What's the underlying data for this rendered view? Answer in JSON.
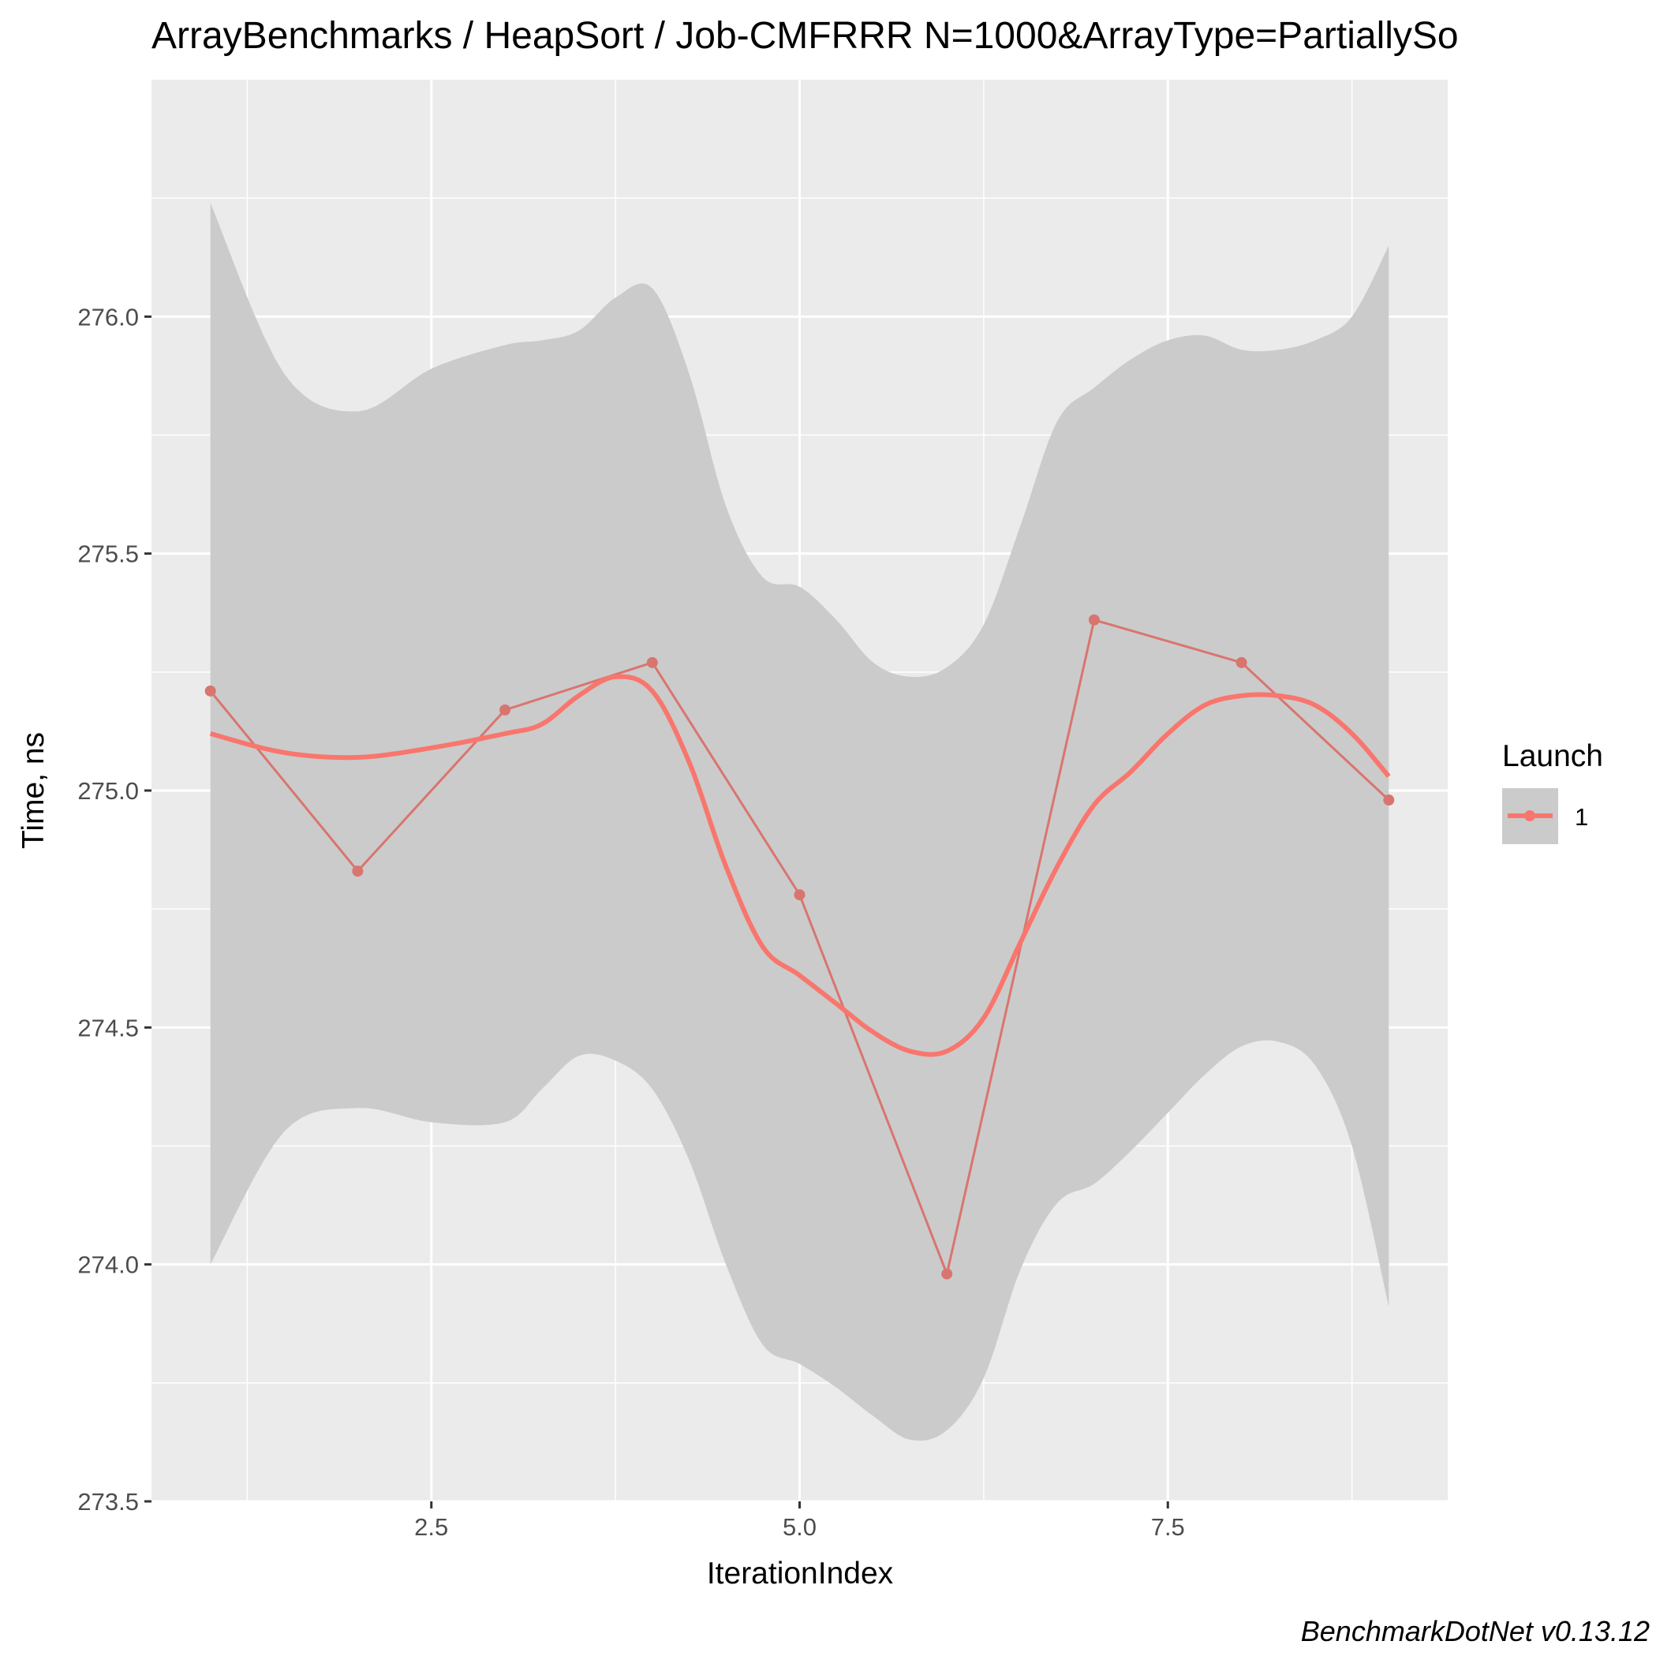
{
  "chart_data": {
    "type": "line",
    "title": "ArrayBenchmarks / HeapSort / Job-CMFRRR N=1000&ArrayType=PartiallySo",
    "xlabel": "IterationIndex",
    "ylabel": "Time, ns",
    "caption": "BenchmarkDotNet v0.13.12",
    "xlim": [
      0.6,
      9.4
    ],
    "ylim": [
      273.5,
      276.5
    ],
    "x_ticks": [
      2.5,
      5.0,
      7.5
    ],
    "x_tick_labels": [
      "2.5",
      "5.0",
      "7.5"
    ],
    "y_ticks": [
      273.5,
      274.0,
      274.5,
      275.0,
      275.5,
      276.0
    ],
    "y_tick_labels": [
      "273.5",
      "274.0",
      "274.5",
      "275.0",
      "275.5",
      "276.0"
    ],
    "grid": true,
    "legend": {
      "title": "Launch",
      "placement": "right",
      "entries": [
        "1"
      ]
    },
    "colors": {
      "panel": "#EBEBEB",
      "grid": "#FFFFFF",
      "series": "#F8766D",
      "raw_line": "#D9756F",
      "ribbon": "#CBCBCB"
    },
    "series": [
      {
        "name": "1",
        "x": [
          1,
          2,
          3,
          4,
          5,
          6,
          7,
          8,
          9
        ],
        "y": [
          275.21,
          274.83,
          275.17,
          275.27,
          274.78,
          273.98,
          275.36,
          275.27,
          274.98
        ]
      }
    ],
    "smooth": {
      "x": [
        1.0,
        1.5,
        2.0,
        2.5,
        3.0,
        3.25,
        3.5,
        3.75,
        4.0,
        4.25,
        4.5,
        4.75,
        5.0,
        5.25,
        5.5,
        5.75,
        6.0,
        6.25,
        6.5,
        6.75,
        7.0,
        7.25,
        7.5,
        7.75,
        8.0,
        8.25,
        8.5,
        8.75,
        9.0
      ],
      "y": [
        275.12,
        275.08,
        275.07,
        275.09,
        275.12,
        275.14,
        275.2,
        275.24,
        275.21,
        275.06,
        274.84,
        274.67,
        274.61,
        274.55,
        274.49,
        274.45,
        274.45,
        274.52,
        274.68,
        274.84,
        274.97,
        275.04,
        275.12,
        275.18,
        275.2,
        275.2,
        275.18,
        275.12,
        275.03
      ],
      "lower": [
        274.0,
        274.28,
        274.33,
        274.3,
        274.3,
        274.37,
        274.44,
        274.43,
        274.37,
        274.22,
        274.0,
        273.83,
        273.79,
        273.74,
        273.68,
        273.63,
        273.65,
        273.76,
        273.99,
        274.13,
        274.17,
        274.24,
        274.32,
        274.4,
        274.46,
        274.47,
        274.42,
        274.25,
        273.91
      ],
      "upper": [
        276.24,
        275.88,
        275.8,
        275.89,
        275.94,
        275.95,
        275.97,
        276.04,
        276.06,
        275.88,
        275.6,
        275.45,
        275.43,
        275.36,
        275.27,
        275.24,
        275.26,
        275.35,
        275.56,
        275.78,
        275.85,
        275.91,
        275.95,
        275.96,
        275.93,
        275.93,
        275.95,
        276.0,
        276.15
      ]
    }
  }
}
